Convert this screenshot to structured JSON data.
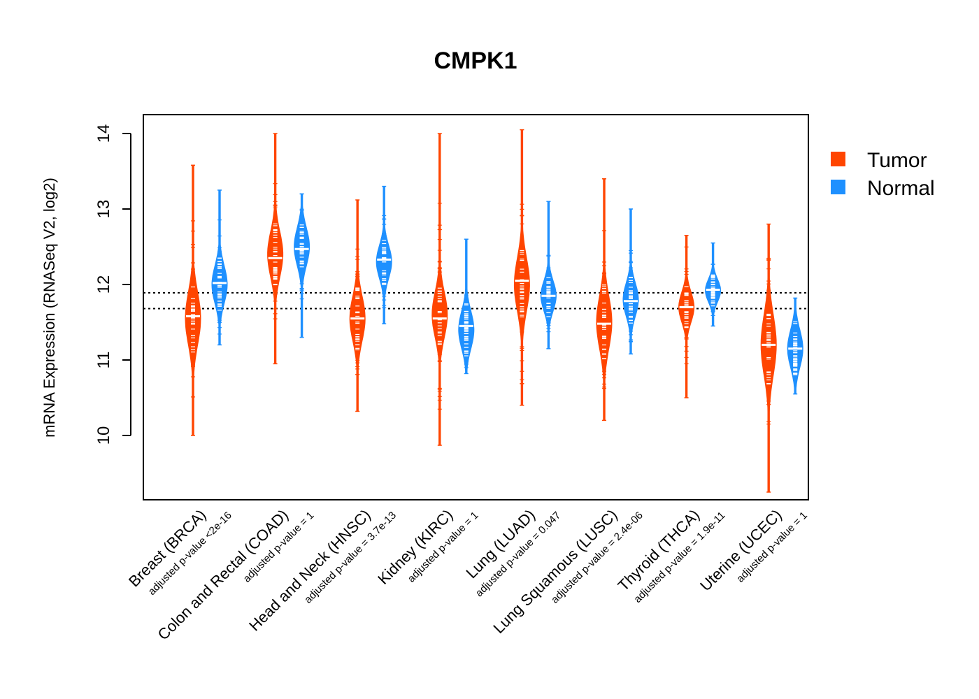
{
  "chart_data": {
    "type": "violin",
    "title": "CMPK1",
    "xlabel": "",
    "ylabel": "mRNA Expression (RNASeq V2, log2)",
    "ylim": [
      9.15,
      14.25
    ],
    "yticks": [
      10,
      11,
      12,
      13,
      14
    ],
    "reference_lines": [
      11.68,
      11.89
    ],
    "legend": {
      "position": "top-right",
      "entries": [
        {
          "name": "Tumor",
          "color": "#FF4500"
        },
        {
          "name": "Normal",
          "color": "#1E90FF"
        }
      ]
    },
    "series": [
      {
        "name": "Tumor",
        "color": "#FF4500"
      },
      {
        "name": "Normal",
        "color": "#1E90FF"
      }
    ],
    "categories": [
      {
        "label": "Breast (BRCA)",
        "pvalue": "adjusted p-value <2e-16",
        "tumor": {
          "median": 11.58,
          "min": 10.0,
          "max": 13.58,
          "mode": 11.55,
          "spread": 0.35
        },
        "normal": {
          "median": 12.02,
          "min": 11.2,
          "max": 13.25,
          "mode": 12.0,
          "spread": 0.25
        }
      },
      {
        "label": "Colon and Rectal (COAD)",
        "pvalue": "adjusted p-value = 1",
        "tumor": {
          "median": 12.35,
          "min": 10.95,
          "max": 14.0,
          "mode": 12.4,
          "spread": 0.3
        },
        "normal": {
          "median": 12.47,
          "min": 11.3,
          "max": 13.2,
          "mode": 12.5,
          "spread": 0.25
        }
      },
      {
        "label": "Head and Neck (HNSC)",
        "pvalue": "adjusted p-value = 3.7e-13",
        "tumor": {
          "median": 11.55,
          "min": 10.32,
          "max": 13.12,
          "mode": 11.55,
          "spread": 0.3
        },
        "normal": {
          "median": 12.33,
          "min": 11.48,
          "max": 13.3,
          "mode": 12.3,
          "spread": 0.22
        }
      },
      {
        "label": "Kidney (KIRC)",
        "pvalue": "adjusted p-value = 1",
        "tumor": {
          "median": 11.55,
          "min": 9.87,
          "max": 14.0,
          "mode": 11.6,
          "spread": 0.3
        },
        "normal": {
          "median": 11.45,
          "min": 10.82,
          "max": 12.6,
          "mode": 11.4,
          "spread": 0.25
        }
      },
      {
        "label": "Lung (LUAD)",
        "pvalue": "adjusted p-value = 0.047",
        "tumor": {
          "median": 12.05,
          "min": 10.4,
          "max": 14.05,
          "mode": 12.0,
          "spread": 0.35
        },
        "normal": {
          "median": 11.85,
          "min": 11.15,
          "max": 13.1,
          "mode": 11.85,
          "spread": 0.2
        }
      },
      {
        "label": "Lung Squamous (LUSC)",
        "pvalue": "adjusted p-value = 2.4e-06",
        "tumor": {
          "median": 11.48,
          "min": 10.2,
          "max": 13.4,
          "mode": 11.5,
          "spread": 0.35
        },
        "normal": {
          "median": 11.78,
          "min": 11.08,
          "max": 13.0,
          "mode": 11.8,
          "spread": 0.22
        }
      },
      {
        "label": "Thyroid (THCA)",
        "pvalue": "adjusted p-value = 1.9e-11",
        "tumor": {
          "median": 11.7,
          "min": 10.5,
          "max": 12.65,
          "mode": 11.7,
          "spread": 0.2
        },
        "normal": {
          "median": 11.93,
          "min": 11.45,
          "max": 12.55,
          "mode": 11.92,
          "spread": 0.15
        }
      },
      {
        "label": "Uterine (UCEC)",
        "pvalue": "adjusted p-value = 1",
        "tumor": {
          "median": 11.2,
          "min": 9.25,
          "max": 12.8,
          "mode": 11.2,
          "spread": 0.4
        },
        "normal": {
          "median": 11.15,
          "min": 10.55,
          "max": 11.82,
          "mode": 11.15,
          "spread": 0.25
        }
      }
    ]
  }
}
